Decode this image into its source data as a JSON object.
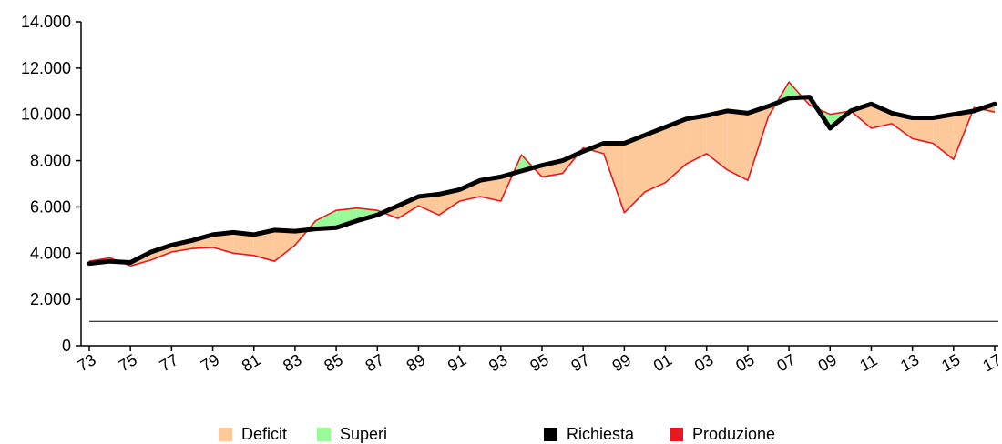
{
  "chart_data": {
    "type": "area",
    "title": "",
    "xlabel": "",
    "ylabel": "",
    "x": [
      "73",
      "74",
      "75",
      "76",
      "77",
      "78",
      "79",
      "80",
      "81",
      "82",
      "83",
      "84",
      "85",
      "86",
      "87",
      "88",
      "89",
      "90",
      "91",
      "92",
      "93",
      "94",
      "95",
      "96",
      "97",
      "98",
      "99",
      "00",
      "01",
      "02",
      "03",
      "04",
      "05",
      "06",
      "07",
      "08",
      "09",
      "10",
      "11",
      "12",
      "13",
      "14",
      "15",
      "16",
      "17"
    ],
    "x_tick_labels": [
      "73",
      "75",
      "77",
      "79",
      "81",
      "83",
      "85",
      "87",
      "89",
      "91",
      "93",
      "95",
      "97",
      "99",
      "01",
      "03",
      "05",
      "07",
      "09",
      "11",
      "13",
      "15",
      "17"
    ],
    "y_tick_labels": [
      "0",
      "2.000",
      "4.000",
      "6.000",
      "8.000",
      "10.000",
      "12.000",
      "14.000"
    ],
    "ylim": [
      0,
      14000
    ],
    "reference_line": 1050,
    "series": [
      {
        "name": "Richiesta",
        "color": "#000000",
        "values": [
          3550,
          3650,
          3600,
          4050,
          4350,
          4550,
          4800,
          4900,
          4800,
          5000,
          4950,
          5050,
          5100,
          5400,
          5650,
          6050,
          6450,
          6550,
          6750,
          7150,
          7300,
          7550,
          7800,
          8000,
          8400,
          8750,
          8750,
          9100,
          9450,
          9800,
          9950,
          10150,
          10050,
          10350,
          10700,
          10750,
          9400,
          10150,
          10450,
          10050,
          9850,
          9850,
          10000,
          10150,
          10450
        ]
      },
      {
        "name": "Produzione",
        "color": "#e8191e",
        "values": [
          3650,
          3800,
          3450,
          3700,
          4050,
          4200,
          4250,
          4000,
          3900,
          3650,
          4350,
          5400,
          5850,
          5950,
          5850,
          5500,
          6050,
          5650,
          6250,
          6450,
          6250,
          8250,
          7300,
          7450,
          8550,
          8300,
          5750,
          6650,
          7050,
          7850,
          8300,
          7600,
          7150,
          9900,
          11400,
          10400,
          10000,
          10150,
          9400,
          9600,
          8950,
          8750,
          8050,
          10300,
          10100
        ]
      }
    ],
    "fills": [
      {
        "name": "Deficit",
        "color": "#fdc89a"
      },
      {
        "name": "Superi",
        "color": "#99fb98"
      }
    ],
    "legend": [
      {
        "label": "Deficit",
        "color": "#fdc89a"
      },
      {
        "label": "Superi",
        "color": "#99fb98"
      },
      {
        "label": "Richiesta",
        "color": "#000000"
      },
      {
        "label": "Produzione",
        "color": "#e8191e"
      }
    ],
    "legend_position": "bottom",
    "grid": false
  }
}
